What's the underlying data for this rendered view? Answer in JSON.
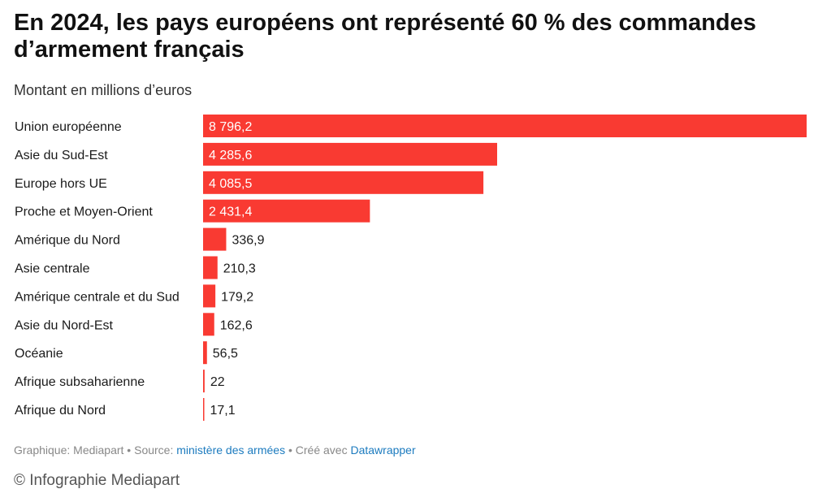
{
  "title": "En 2024, les pays européens ont représenté 60 % des commandes d’armement français",
  "subtitle": "Montant en millions d’euros",
  "colors": {
    "bar": "#f93a32",
    "link": "#1c7bbf"
  },
  "chart_data": {
    "type": "bar",
    "orientation": "horizontal",
    "title": "En 2024, les pays européens ont représenté 60 % des commandes d’armement français",
    "subtitle": "Montant en millions d’euros",
    "xlabel": "",
    "ylabel": "",
    "xlim": [
      0,
      8796.2
    ],
    "categories": [
      "Union européenne",
      "Asie du Sud-Est",
      "Europe hors UE",
      "Proche et Moyen-Orient",
      "Amérique du Nord",
      "Asie centrale",
      "Amérique centrale et du Sud",
      "Asie du Nord-Est",
      "Océanie",
      "Afrique subsaharienne",
      "Afrique du Nord"
    ],
    "values": [
      8796.2,
      4285.6,
      4085.5,
      2431.4,
      336.9,
      210.3,
      179.2,
      162.6,
      56.5,
      22,
      17.1
    ],
    "value_labels": [
      "8 796,2",
      "4 285,6",
      "4 085,5",
      "2 431,4",
      "336,9",
      "210,3",
      "179,2",
      "162,6",
      "56,5",
      "22",
      "17,1"
    ]
  },
  "footer": {
    "graphic_label": "Graphique: Mediapart",
    "separator": " • ",
    "source_prefix": "Source: ",
    "source_link": "ministère des armées",
    "created_prefix": "Créé avec ",
    "created_link": "Datawrapper"
  },
  "copyright": "© Infographie Mediapart"
}
